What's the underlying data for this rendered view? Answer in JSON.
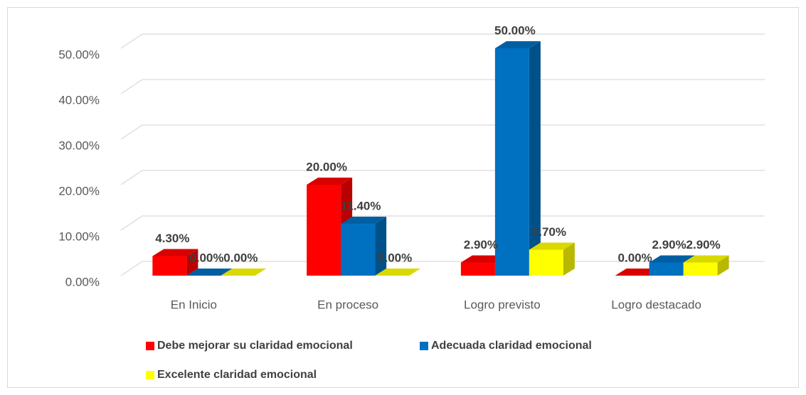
{
  "chart_data": {
    "type": "bar3d",
    "categories": [
      "En Inicio",
      "En proceso",
      "Logro previsto",
      "Logro destacado"
    ],
    "series": [
      {
        "name": "Debe mejorar su claridad emocional",
        "color": "#ff0000",
        "values": [
          4.3,
          20,
          2.9,
          0
        ],
        "value_labels": [
          "4.30%",
          "20.00%",
          "2.90%",
          "0.00%"
        ]
      },
      {
        "name": "Adecuada claridad emocional",
        "color": "#0070c0",
        "values": [
          0,
          11.4,
          50,
          2.9
        ],
        "value_labels": [
          "0.00%",
          "11.40%",
          "50.00%",
          "2.90%"
        ]
      },
      {
        "name": "Excelente claridad emocional",
        "color": "#ffff00",
        "values": [
          0,
          0,
          5.7,
          2.9
        ],
        "value_labels": [
          "0.00%",
          "0.00%",
          "5.70%",
          "2.90%"
        ]
      }
    ],
    "ylim": [
      0,
      50
    ],
    "yticks": [
      {
        "value": 0,
        "label": "0.00%"
      },
      {
        "value": 10,
        "label": "10.00%"
      },
      {
        "value": 20,
        "label": "20.00%"
      },
      {
        "value": 30,
        "label": "30.00%"
      },
      {
        "value": 40,
        "label": "40.00%"
      },
      {
        "value": 50,
        "label": "50.00%"
      }
    ],
    "grid": true,
    "legend": "bottom"
  }
}
